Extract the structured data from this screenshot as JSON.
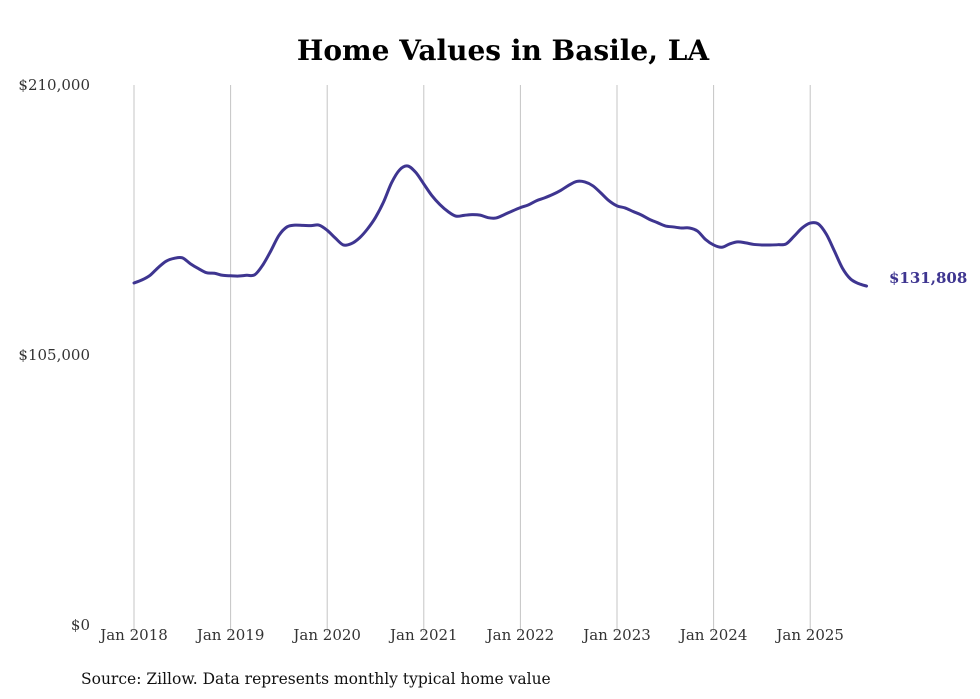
{
  "chart_data": {
    "type": "line",
    "title": "Home Values in Basile, LA",
    "xlabel": "",
    "ylabel": "",
    "ylim": [
      0,
      210000
    ],
    "ytick_values": [
      0,
      105000,
      210000
    ],
    "ytick_labels": [
      "$0",
      "$105,000",
      "$210,000"
    ],
    "xtick_labels": [
      "Jan 2018",
      "Jan 2019",
      "Jan 2020",
      "Jan 2021",
      "Jan 2022",
      "Jan 2023",
      "Jan 2024",
      "Jan 2025"
    ],
    "grid": true,
    "series": [
      {
        "name": "Typical home value",
        "color": "#3e3590",
        "start": "Jan 2018",
        "interval": "monthly",
        "values": [
          133000,
          134200,
          136000,
          139000,
          141500,
          142600,
          142800,
          140500,
          138600,
          137000,
          136800,
          136000,
          135800,
          135700,
          136000,
          136200,
          140000,
          145500,
          151500,
          154800,
          155500,
          155400,
          155300,
          155500,
          153500,
          150500,
          147800,
          148300,
          150500,
          154000,
          158500,
          164500,
          172000,
          177000,
          178500,
          176000,
          171500,
          167000,
          163500,
          160800,
          159000,
          159300,
          159600,
          159400,
          158400,
          158300,
          159600,
          161000,
          162300,
          163400,
          165000,
          166100,
          167400,
          169000,
          171000,
          172500,
          172300,
          170800,
          168000,
          165000,
          163000,
          162200,
          160800,
          159500,
          157800,
          156500,
          155200,
          154800,
          154400,
          154400,
          153200,
          149900,
          147800,
          146900,
          148200,
          149000,
          148600,
          148000,
          147800,
          147800,
          147900,
          148200,
          151200,
          154400,
          156300,
          156000,
          152000,
          145500,
          138800,
          134600,
          132800,
          131808
        ]
      }
    ],
    "end_label": "$131,808",
    "annotations": []
  },
  "footer": {
    "source_text": "Source: Zillow. Data represents monthly typical home value"
  }
}
